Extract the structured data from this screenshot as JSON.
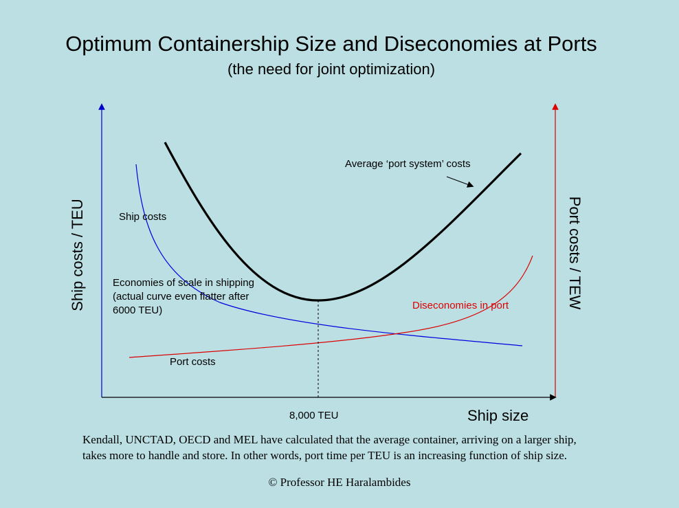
{
  "title": "Optimum Containership Size and Diseconomies at Ports",
  "subtitle": "(the need for joint optimization)",
  "axes": {
    "y_left_label": "Ship costs / TEU",
    "y_right_label": "Port costs / TEW",
    "x_label": "Ship size",
    "x_marker_label": "8,000 TEU"
  },
  "curve_labels": {
    "average_port_system": "Average ‘port system’ costs",
    "ship_costs": "Ship costs",
    "economies_of_scale": "Economies of scale in shipping (actual curve even flatter after 6000 TEU)",
    "diseconomies_in_port": "Diseconomies in port",
    "port_costs": "Port costs"
  },
  "colors": {
    "background": "#bbdfe3",
    "ship_axis": "#0000cc",
    "port_axis": "#dd0000",
    "ship_curve": "#0000dd",
    "port_curve": "#dd0000",
    "system_curve": "#000000"
  },
  "footnote": "Kendall, UNCTAD, OECD and MEL have calculated that the average container, arriving on a larger ship, takes more to handle and store. In other words, port time per TEU is an increasing function of ship size.",
  "copyright": "© Professor HE Haralambides"
}
